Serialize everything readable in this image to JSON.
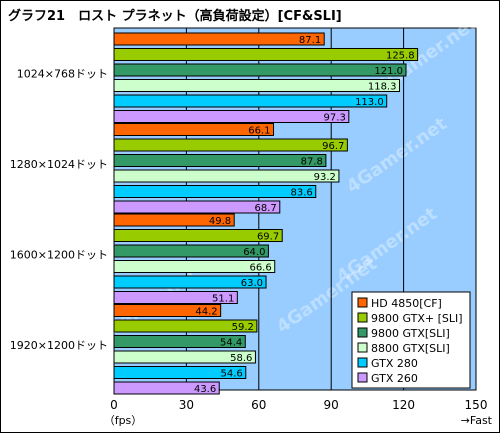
{
  "chart_data": {
    "type": "bar",
    "orientation": "horizontal",
    "title": "グラフ21　ロスト プラネット（高負荷設定）[CF&SLI]",
    "categories": [
      "1024×768ドット",
      "1280×1024ドット",
      "1600×1200ドット",
      "1920×1200ドット"
    ],
    "series": [
      {
        "name": "HD 4850[CF]",
        "color": "#ff6600",
        "values": [
          87.1,
          66.1,
          49.8,
          44.2
        ]
      },
      {
        "name": "9800 GTX+ [SLI]",
        "color": "#99cc00",
        "values": [
          125.8,
          96.7,
          69.7,
          59.2
        ]
      },
      {
        "name": "9800 GTX[SLI]",
        "color": "#339966",
        "values": [
          121.0,
          87.8,
          64.0,
          54.4
        ]
      },
      {
        "name": "8800 GTX[SLI]",
        "color": "#ccffcc",
        "values": [
          118.3,
          93.2,
          66.6,
          58.6
        ]
      },
      {
        "name": "GTX 280",
        "color": "#00ccff",
        "values": [
          113.0,
          83.6,
          63.0,
          54.6
        ]
      },
      {
        "name": "GTX 260",
        "color": "#cc99ff",
        "values": [
          97.3,
          68.7,
          51.1,
          43.6
        ]
      }
    ],
    "value_labels": [
      [
        "87.1",
        "125.8",
        "121.0",
        "118.3",
        "113.0",
        "97.3"
      ],
      [
        "66.1",
        "96.7",
        "87.8",
        "93.2",
        "83.6",
        "68.7"
      ],
      [
        "49.8",
        "69.7",
        "64.0",
        "66.6",
        "63.0",
        "51.1"
      ],
      [
        "44.2",
        "59.2",
        "54.4",
        "58.6",
        "54.6",
        "43.6"
      ]
    ],
    "xlim": [
      0,
      150
    ],
    "x_ticks": [
      "0",
      "30",
      "60",
      "90",
      "120",
      "150"
    ],
    "x_unit_label": "（fps）",
    "x_direction_label": "→Fast",
    "grid": true,
    "legend_position": "bottom-right",
    "plot_background": "#99ccff",
    "watermark": "4Gamer.net"
  }
}
